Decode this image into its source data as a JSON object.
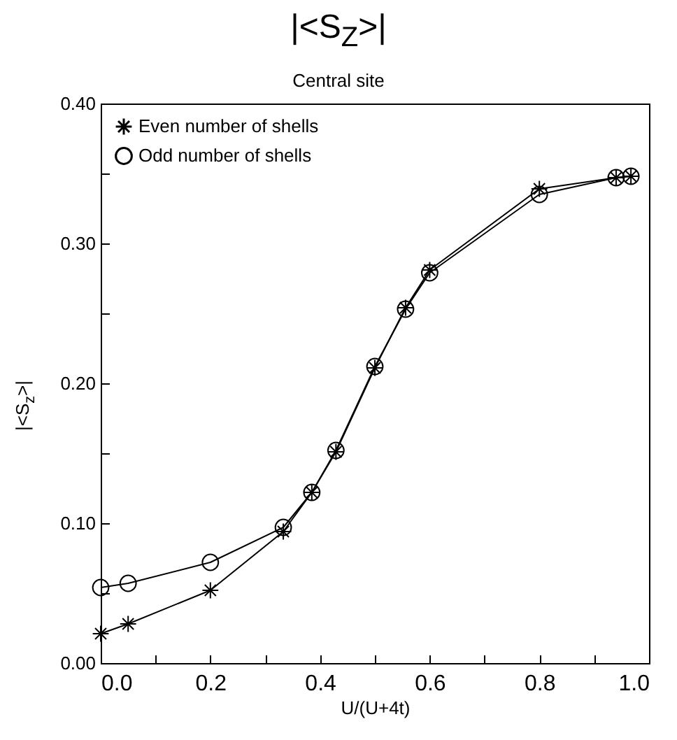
{
  "chart_data": {
    "type": "line",
    "title": "|<S$_{Z}$>|",
    "subtitle": "Central site",
    "xlabel": "U/(U+4t)",
    "ylabel": "|<S$_{z}$>|",
    "xlim": [
      0,
      1
    ],
    "ylim": [
      0,
      0.4
    ],
    "xticks": [
      {
        "value": 0,
        "label": "0.0"
      },
      {
        "value": 0.1,
        "label": null
      },
      {
        "value": 0.2,
        "label": "0.2"
      },
      {
        "value": 0.3,
        "label": null
      },
      {
        "value": 0.4,
        "label": "0.4"
      },
      {
        "value": 0.5,
        "label": null
      },
      {
        "value": 0.6,
        "label": "0.6"
      },
      {
        "value": 0.7,
        "label": null
      },
      {
        "value": 0.8,
        "label": "0.8"
      },
      {
        "value": 0.9,
        "label": null
      },
      {
        "value": 1,
        "label": "1.0"
      }
    ],
    "yticks": [
      {
        "value": 0,
        "label": "0.00"
      },
      {
        "value": 0.05,
        "label": null
      },
      {
        "value": 0.1,
        "label": "0.10"
      },
      {
        "value": 0.15,
        "label": null
      },
      {
        "value": 0.2,
        "label": "0.20"
      },
      {
        "value": 0.25,
        "label": null
      },
      {
        "value": 0.3,
        "label": "0.30"
      },
      {
        "value": 0.35,
        "label": null
      },
      {
        "value": 0.4,
        "label": "0.40"
      }
    ],
    "x": [
      0,
      0.05,
      0.2,
      0.333,
      0.385,
      0.429,
      0.5,
      0.556,
      0.6,
      0.8,
      0.94,
      0.967
    ],
    "series": [
      {
        "name": "Even number of shells",
        "color": "#000000",
        "marker": "cross",
        "values": [
          0.021,
          0.028,
          0.052,
          0.094,
          0.122,
          0.151,
          0.211,
          0.254,
          0.281,
          0.339,
          0.347,
          0.348
        ]
      },
      {
        "name": "Odd number of shells",
        "color": "#000000",
        "marker": "circle",
        "values": [
          0.054,
          0.057,
          0.072,
          0.097,
          0.122,
          0.152,
          0.212,
          0.253,
          0.279,
          0.335,
          0.347,
          0.348
        ]
      }
    ],
    "grid": false,
    "legend": "top left",
    "line_style": "solid"
  }
}
